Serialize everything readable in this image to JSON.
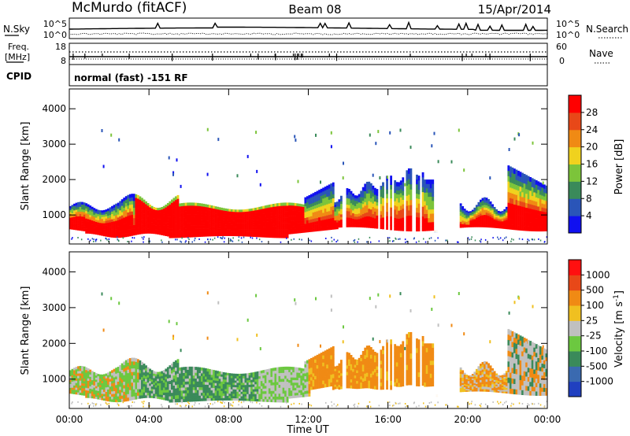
{
  "header": {
    "site": "McMurdo (fitACF)",
    "beam": "Beam 08",
    "date": "15/Apr/2014"
  },
  "strip": {
    "nsky_label": "N.Sky",
    "nsky_ticks": [
      "10^5",
      "10^0"
    ],
    "nsearch_label": "N.Search",
    "nsearch_ticks": [
      "10^5",
      "10^0"
    ],
    "freq_label_1": "Freq.",
    "freq_label_2": "[MHz]",
    "freq_ticks": [
      "18",
      "8"
    ],
    "nave_label": "Nave",
    "nave_ticks": [
      "60",
      "0"
    ],
    "cpid_label": "CPID",
    "cpid_text": "normal (fast) -151 RF"
  },
  "chart_data": [
    {
      "type": "heatmap",
      "name": "power",
      "ylabel": "Slant Range [km]",
      "ylim": [
        180,
        4560
      ],
      "yticks": [
        "1000",
        "2000",
        "3000",
        "4000"
      ],
      "ytick_values": [
        1000,
        2000,
        3000,
        4000
      ],
      "xlabel": "Time UT",
      "xlim": [
        0,
        24
      ],
      "xticks": [
        "00:00",
        "04:00",
        "08:00",
        "12:00",
        "16:00",
        "20:00",
        "00:00"
      ],
      "xtick_values": [
        0,
        4,
        8,
        12,
        16,
        20,
        24
      ],
      "colorbar": {
        "label": "Power [dB]",
        "ticks": [
          "4",
          "8",
          "12",
          "16",
          "20",
          "24",
          "28"
        ],
        "colors": [
          "#1010f0",
          "#2a55b8",
          "#3a8a5a",
          "#7cc43a",
          "#f0d21e",
          "#f08a14",
          "#e84818",
          "#ff0000"
        ]
      }
    },
    {
      "type": "heatmap",
      "name": "velocity",
      "ylabel": "Slant Range [km]",
      "ylim": [
        180,
        4560
      ],
      "yticks": [
        "1000",
        "2000",
        "3000",
        "4000"
      ],
      "ytick_values": [
        1000,
        2000,
        3000,
        4000
      ],
      "xlabel": "Time UT",
      "xlim": [
        0,
        24
      ],
      "xticks": [
        "00:00",
        "04:00",
        "08:00",
        "12:00",
        "16:00",
        "20:00",
        "00:00"
      ],
      "xtick_values": [
        0,
        4,
        8,
        12,
        16,
        20,
        24
      ],
      "colorbar": {
        "label": "Velocity [m s",
        "label_sup": "-1",
        "label_end": "]",
        "ticks": [
          "1000",
          "500",
          "100",
          "25",
          "-25",
          "-100",
          "-500",
          "-1000"
        ],
        "colors": [
          "#2040c0",
          "#3a6ab0",
          "#3a8a5a",
          "#6cc840",
          "#c0c0c0",
          "#f0c020",
          "#f08a14",
          "#e84818",
          "#ff1010"
        ]
      }
    }
  ],
  "xlabel": "Time UT"
}
